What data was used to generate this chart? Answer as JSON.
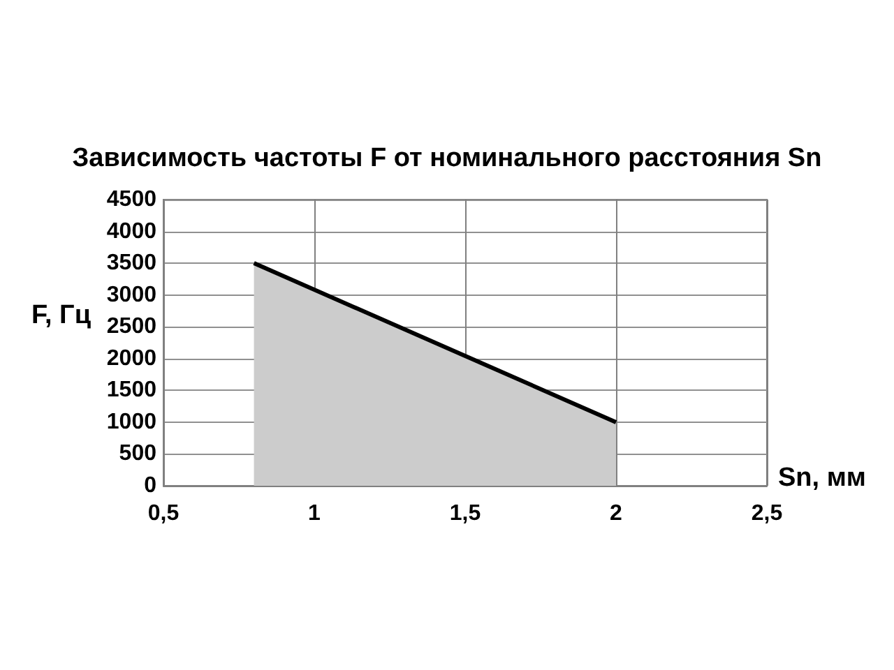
{
  "chart_data": {
    "type": "area",
    "title": "Зависимость частоты F от номинального расстояния Sn",
    "xlabel": "Sn, мм",
    "ylabel": "F, Гц",
    "series": [
      {
        "color": "#cccccc",
        "x": [
          0.8,
          2
        ],
        "values": [
          3500,
          1000
        ]
      }
    ],
    "xlim": [
      0.5,
      2.5
    ],
    "xticks": [
      {
        "value": 0.5,
        "label": "0,5"
      },
      1,
      {
        "value": 1.5,
        "label": "1,5"
      },
      2,
      {
        "value": 2.5,
        "label": "2,5"
      }
    ],
    "ylim": [
      0,
      4500
    ],
    "yticks": [
      0,
      500,
      1000,
      1500,
      2000,
      2500,
      3000,
      3500,
      4000,
      4500
    ],
    "grid": true
  }
}
